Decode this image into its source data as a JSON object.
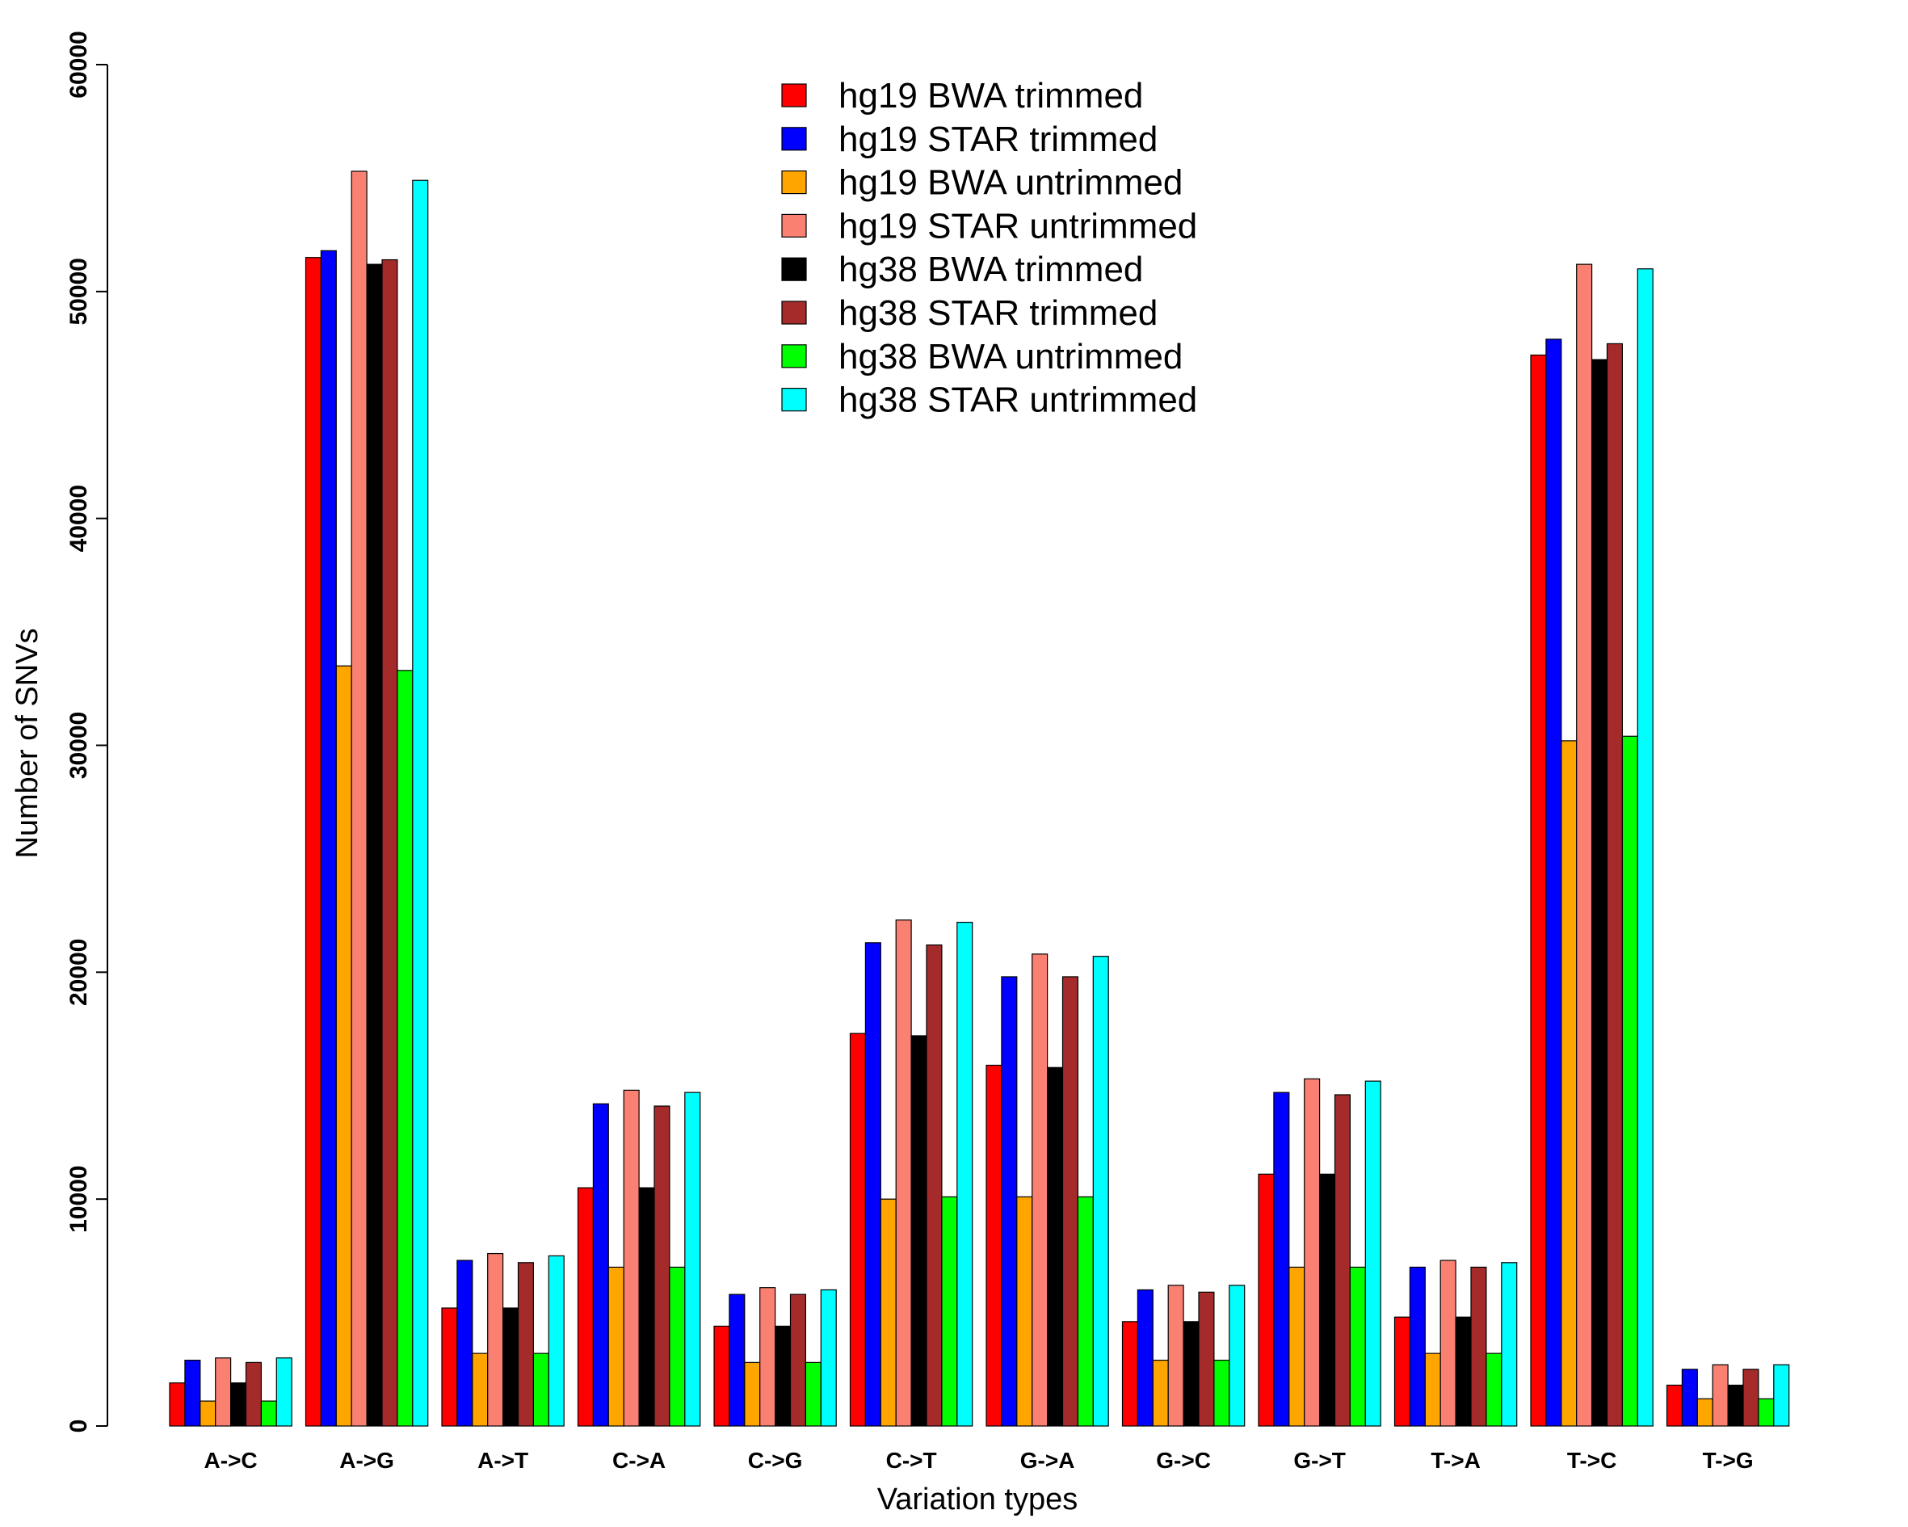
{
  "chart_data": {
    "type": "bar",
    "title": "",
    "xlabel": "Variation types",
    "ylabel": "Number of SNVs",
    "ylim": [
      0,
      60000
    ],
    "yticks": [
      0,
      10000,
      20000,
      30000,
      40000,
      50000,
      60000
    ],
    "grid": false,
    "legend_position": "top-center",
    "categories": [
      "A->C",
      "A->G",
      "A->T",
      "C->A",
      "C->G",
      "C->T",
      "G->A",
      "G->C",
      "G->T",
      "T->A",
      "T->C",
      "T->G"
    ],
    "series": [
      {
        "name": "hg19 BWA trimmed",
        "color": "#ff0000",
        "values": [
          1900,
          51500,
          5200,
          10500,
          4400,
          17300,
          15900,
          4600,
          11100,
          4800,
          47200,
          1800
        ]
      },
      {
        "name": "hg19 STAR trimmed",
        "color": "#0000ff",
        "values": [
          2900,
          51800,
          7300,
          14200,
          5800,
          21300,
          19800,
          6000,
          14700,
          7000,
          47900,
          2500
        ]
      },
      {
        "name": "hg19 BWA untrimmed",
        "color": "#ffa500",
        "values": [
          1100,
          33500,
          3200,
          7000,
          2800,
          10000,
          10100,
          2900,
          7000,
          3200,
          30200,
          1200
        ]
      },
      {
        "name": "hg19 STAR untrimmed",
        "color": "#fa8072",
        "values": [
          3000,
          55300,
          7600,
          14800,
          6100,
          22300,
          20800,
          6200,
          15300,
          7300,
          51200,
          2700
        ]
      },
      {
        "name": "hg38 BWA trimmed",
        "color": "#000000",
        "values": [
          1900,
          51200,
          5200,
          10500,
          4400,
          17200,
          15800,
          4600,
          11100,
          4800,
          47000,
          1800
        ]
      },
      {
        "name": "hg38 STAR trimmed",
        "color": "#a52a2a",
        "values": [
          2800,
          51400,
          7200,
          14100,
          5800,
          21200,
          19800,
          5900,
          14600,
          7000,
          47700,
          2500
        ]
      },
      {
        "name": "hg38 BWA untrimmed",
        "color": "#00ff00",
        "values": [
          1100,
          33300,
          3200,
          7000,
          2800,
          10100,
          10100,
          2900,
          7000,
          3200,
          30400,
          1200
        ]
      },
      {
        "name": "hg38 STAR untrimmed",
        "color": "#00ffff",
        "values": [
          3000,
          54900,
          7500,
          14700,
          6000,
          22200,
          20700,
          6200,
          15200,
          7200,
          51000,
          2700
        ]
      }
    ]
  }
}
